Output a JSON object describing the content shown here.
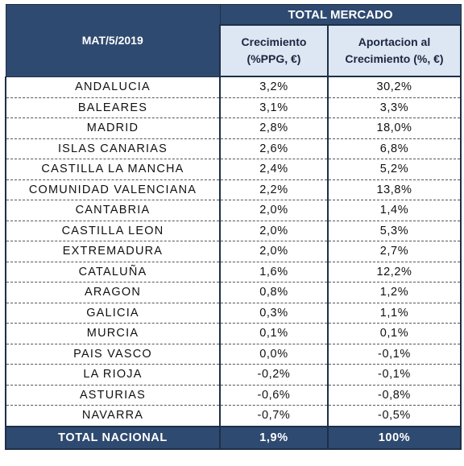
{
  "header": {
    "period": "MAT/5/2019",
    "group": "TOTAL MERCADO",
    "col_growth_line1": "Crecimiento",
    "col_growth_line2": "(%PPG, €)",
    "col_contrib_line1": "Aportacion al",
    "col_contrib_line2": "Crecimiento (%, €)"
  },
  "rows": [
    {
      "region": "ANDALUCIA",
      "growth": "3,2%",
      "contribution": "30,2%"
    },
    {
      "region": "BALEARES",
      "growth": "3,1%",
      "contribution": "3,3%"
    },
    {
      "region": "MADRID",
      "growth": "2,8%",
      "contribution": "18,0%"
    },
    {
      "region": "ISLAS CANARIAS",
      "growth": "2,6%",
      "contribution": "6,8%"
    },
    {
      "region": "CASTILLA LA MANCHA",
      "growth": "2,4%",
      "contribution": "5,2%"
    },
    {
      "region": "COMUNIDAD VALENCIANA",
      "growth": "2,2%",
      "contribution": "13,8%"
    },
    {
      "region": "CANTABRIA",
      "growth": "2,0%",
      "contribution": "1,4%"
    },
    {
      "region": "CASTILLA LEON",
      "growth": "2,0%",
      "contribution": "5,3%"
    },
    {
      "region": "EXTREMADURA",
      "growth": "2,0%",
      "contribution": "2,7%"
    },
    {
      "region": "CATALUÑA",
      "growth": "1,6%",
      "contribution": "12,2%"
    },
    {
      "region": "ARAGON",
      "growth": "0,8%",
      "contribution": "1,2%"
    },
    {
      "region": "GALICIA",
      "growth": "0,3%",
      "contribution": "1,1%"
    },
    {
      "region": "MURCIA",
      "growth": "0,1%",
      "contribution": "0,1%"
    },
    {
      "region": "PAIS VASCO",
      "growth": "0,0%",
      "contribution": "-0,1%"
    },
    {
      "region": "LA RIOJA",
      "growth": "-0,2%",
      "contribution": "-0,1%"
    },
    {
      "region": "ASTURIAS",
      "growth": "-0,6%",
      "contribution": "-0,8%"
    },
    {
      "region": "NAVARRA",
      "growth": "-0,7%",
      "contribution": "-0,5%"
    }
  ],
  "total": {
    "label": "TOTAL NACIONAL",
    "growth": "1,9%",
    "contribution": "100%"
  },
  "colors": {
    "header_fill": "#2f4a70",
    "subheader_fill": "#dde6f3",
    "border": "#1e2f47"
  }
}
